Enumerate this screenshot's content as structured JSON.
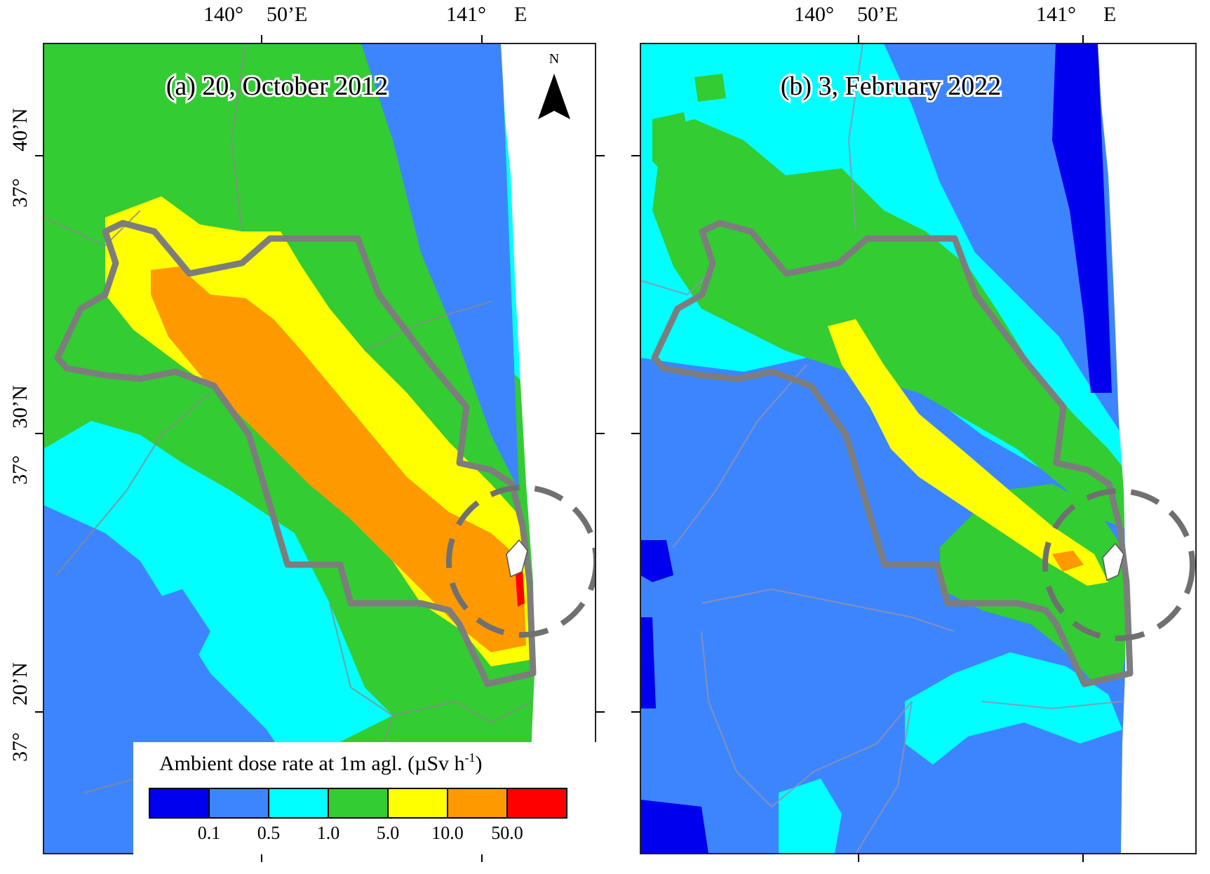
{
  "panels": [
    {
      "title": "(a) 20, October 2012",
      "lon_labels": [
        "140°",
        "50’E",
        "141°",
        "E"
      ],
      "lat_labels": [
        "37°",
        "40’N",
        "37°",
        "30’N",
        "37°",
        "20’N"
      ]
    },
    {
      "title": "(b) 3, February 2022",
      "lon_labels": [
        "140°",
        "50’E",
        "141°",
        "E"
      ]
    }
  ],
  "north_arrow": {
    "label": "N"
  },
  "legend": {
    "title": "Ambient dose rate at 1m agl. (µSv h",
    "title_sup": "-1",
    "title_end": ")",
    "classes": [
      {
        "color": "#0000ee",
        "level": "< 0.1"
      },
      {
        "color": "#3d85ff",
        "level": "0.1 - 0.5"
      },
      {
        "color": "#00ffff",
        "level": "0.5 - 1.0"
      },
      {
        "color": "#33cc33",
        "level": "1.0 - 5.0"
      },
      {
        "color": "#ffff00",
        "level": "5.0 - 10.0"
      },
      {
        "color": "#ff9900",
        "level": "10.0 - 50.0"
      },
      {
        "color": "#ff0000",
        "level": "> 50.0"
      }
    ],
    "tick_labels": [
      "0.1",
      "0.5",
      "1.0",
      "5.0",
      "10.0",
      "50.0"
    ]
  }
}
